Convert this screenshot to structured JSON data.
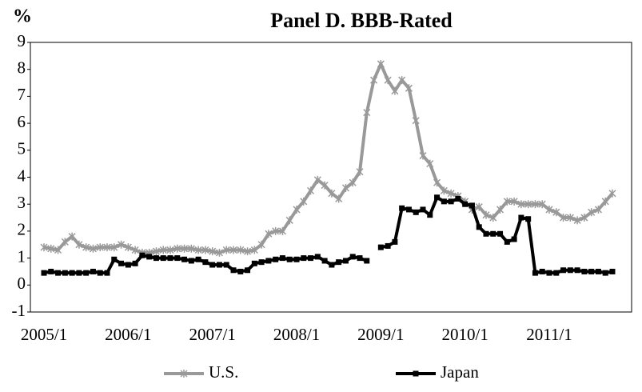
{
  "chart_data": {
    "type": "line",
    "title": "Panel D. BBB-Rated",
    "y_label": "%",
    "categories": [
      "2005/1",
      null,
      null,
      null,
      null,
      null,
      null,
      null,
      null,
      null,
      null,
      null,
      "2006/1",
      null,
      null,
      null,
      null,
      null,
      null,
      null,
      null,
      null,
      null,
      null,
      "2007/1",
      null,
      null,
      null,
      null,
      null,
      null,
      null,
      null,
      null,
      null,
      null,
      "2008/1",
      null,
      null,
      null,
      null,
      null,
      null,
      null,
      null,
      null,
      null,
      null,
      "2009/1",
      null,
      null,
      null,
      null,
      null,
      null,
      null,
      null,
      null,
      null,
      null,
      "2010/1",
      null,
      null,
      null,
      null,
      null,
      null,
      null,
      null,
      null,
      null,
      null,
      "2011/1",
      null,
      null,
      null,
      null,
      null,
      null,
      null,
      null,
      null
    ],
    "series": [
      {
        "name": "U.S.",
        "color": "#999999",
        "marker": "star",
        "values": [
          1.4,
          1.35,
          1.3,
          1.6,
          1.8,
          1.5,
          1.4,
          1.35,
          1.4,
          1.4,
          1.4,
          1.5,
          1.4,
          1.3,
          1.2,
          1.2,
          1.25,
          1.3,
          1.3,
          1.35,
          1.35,
          1.35,
          1.3,
          1.3,
          1.25,
          1.2,
          1.3,
          1.3,
          1.3,
          1.25,
          1.3,
          1.5,
          1.9,
          2.0,
          2.0,
          2.4,
          2.8,
          3.1,
          3.5,
          3.9,
          3.7,
          3.4,
          3.2,
          3.6,
          3.8,
          4.2,
          6.4,
          7.6,
          8.2,
          7.6,
          7.2,
          7.6,
          7.3,
          6.1,
          4.8,
          4.5,
          3.8,
          3.5,
          3.4,
          3.3,
          3.1,
          2.8,
          2.9,
          2.6,
          2.5,
          2.8,
          3.1,
          3.1,
          3.0,
          3.0,
          3.0,
          3.0,
          2.8,
          2.7,
          2.5,
          2.5,
          2.4,
          2.5,
          2.7,
          2.8,
          3.1,
          3.4
        ]
      },
      {
        "name": "Japan",
        "color": "#000000",
        "marker": "square",
        "values": [
          0.45,
          0.5,
          0.45,
          0.45,
          0.45,
          0.45,
          0.45,
          0.5,
          0.45,
          0.45,
          0.95,
          0.8,
          0.75,
          0.8,
          1.1,
          1.05,
          1.0,
          1.0,
          1.0,
          1.0,
          0.95,
          0.9,
          0.95,
          0.85,
          0.75,
          0.75,
          0.75,
          0.55,
          0.5,
          0.55,
          0.8,
          0.85,
          0.9,
          0.95,
          1.0,
          0.95,
          0.95,
          1.0,
          1.0,
          1.05,
          0.9,
          0.75,
          0.85,
          0.9,
          1.05,
          1.0,
          0.9,
          null,
          1.4,
          1.45,
          1.6,
          2.85,
          2.8,
          2.7,
          2.8,
          2.6,
          3.25,
          3.1,
          3.1,
          3.2,
          3.0,
          2.95,
          2.15,
          1.9,
          1.9,
          1.9,
          1.6,
          1.7,
          2.5,
          2.45,
          0.45,
          0.5,
          0.45,
          0.45,
          0.55,
          0.55,
          0.55,
          0.5,
          0.5,
          0.5,
          0.45,
          0.5
        ]
      }
    ],
    "ylim": [
      -1,
      9
    ],
    "yticks": [
      -1,
      0,
      1,
      2,
      3,
      4,
      5,
      6,
      7,
      8,
      9
    ],
    "legend": "bottom"
  }
}
